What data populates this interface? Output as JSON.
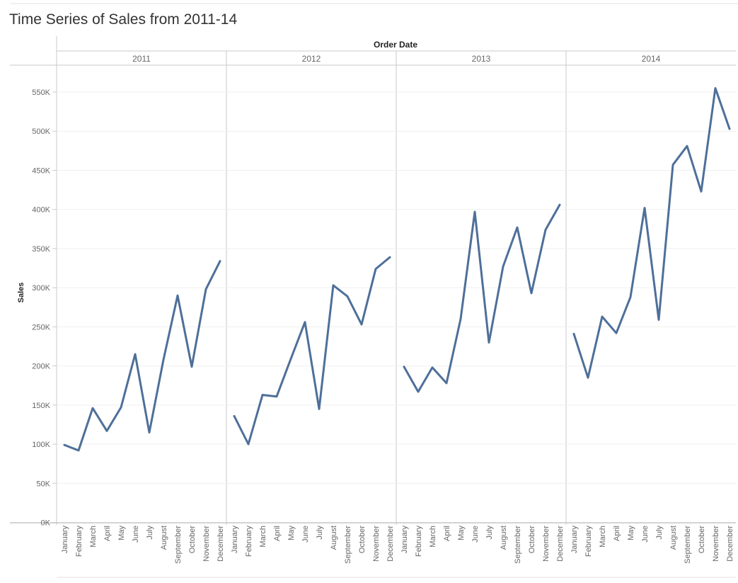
{
  "chart_data": {
    "type": "line",
    "title": "Time Series of Sales from 2011-14",
    "header": "Order Date",
    "ylabel": "Sales",
    "ylim": [
      0,
      580000
    ],
    "yticks": [
      0,
      50000,
      100000,
      150000,
      200000,
      250000,
      300000,
      350000,
      400000,
      450000,
      500000,
      550000
    ],
    "ytick_labels": [
      "0K",
      "50K",
      "100K",
      "150K",
      "200K",
      "250K",
      "300K",
      "350K",
      "400K",
      "450K",
      "500K",
      "550K"
    ],
    "categories": [
      "January",
      "February",
      "March",
      "April",
      "May",
      "June",
      "July",
      "August",
      "September",
      "October",
      "November",
      "December"
    ],
    "grid": true,
    "color": "#4e6f99",
    "series": [
      {
        "name": "2011",
        "values": [
          99000,
          92000,
          146000,
          117000,
          147000,
          215000,
          115000,
          208000,
          290000,
          199000,
          298000,
          334000
        ]
      },
      {
        "name": "2012",
        "values": [
          136000,
          100000,
          163000,
          161000,
          209000,
          256000,
          145000,
          303000,
          289000,
          253000,
          324000,
          339000
        ]
      },
      {
        "name": "2013",
        "values": [
          199000,
          167000,
          198000,
          178000,
          260000,
          397000,
          230000,
          327000,
          377000,
          293000,
          374000,
          406000
        ]
      },
      {
        "name": "2014",
        "values": [
          241000,
          185000,
          263000,
          242000,
          288000,
          402000,
          259000,
          457000,
          481000,
          423000,
          555000,
          503000
        ]
      }
    ]
  }
}
